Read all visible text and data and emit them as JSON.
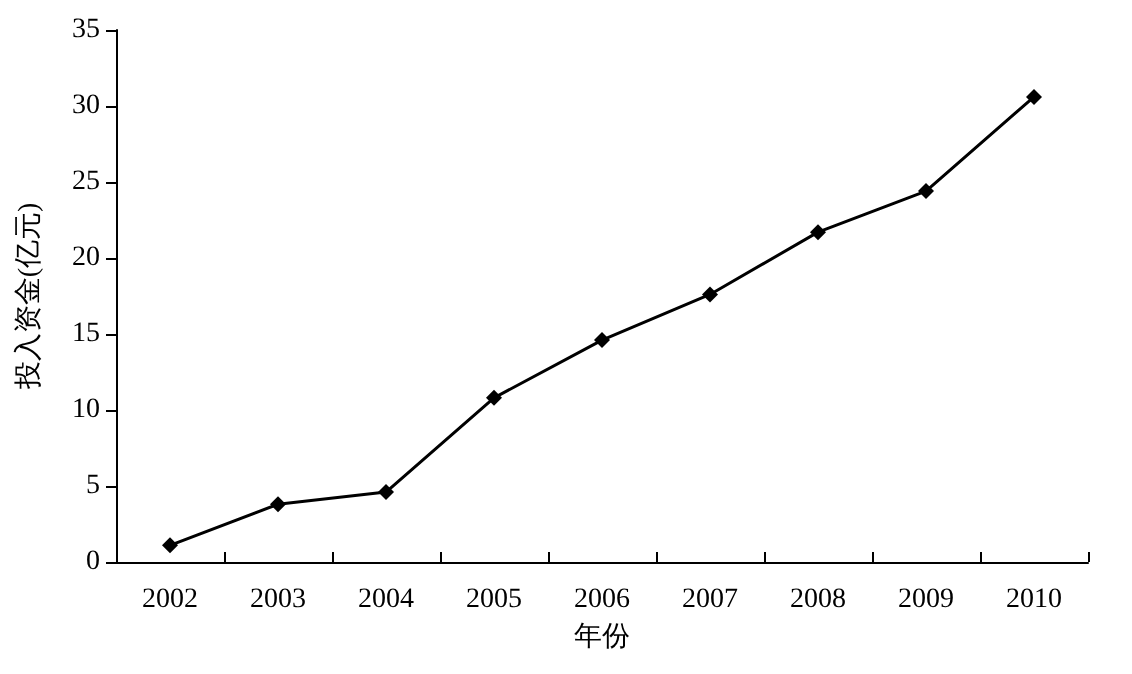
{
  "chart_data": {
    "type": "line",
    "xlabel": "年份",
    "ylabel": "投入资金(亿元)",
    "categories": [
      "2002",
      "2003",
      "2004",
      "2005",
      "2006",
      "2007",
      "2008",
      "2009",
      "2010"
    ],
    "series": [
      {
        "color": "#000000",
        "values": [
          1.1,
          3.8,
          4.6,
          10.8,
          14.6,
          17.6,
          21.7,
          24.4,
          30.6
        ]
      }
    ],
    "ylim": [
      0,
      35
    ],
    "yticks": [
      0,
      5,
      10,
      15,
      20,
      25,
      30,
      35
    ],
    "grid": false,
    "marker": "diamond",
    "line_style": "solid"
  }
}
